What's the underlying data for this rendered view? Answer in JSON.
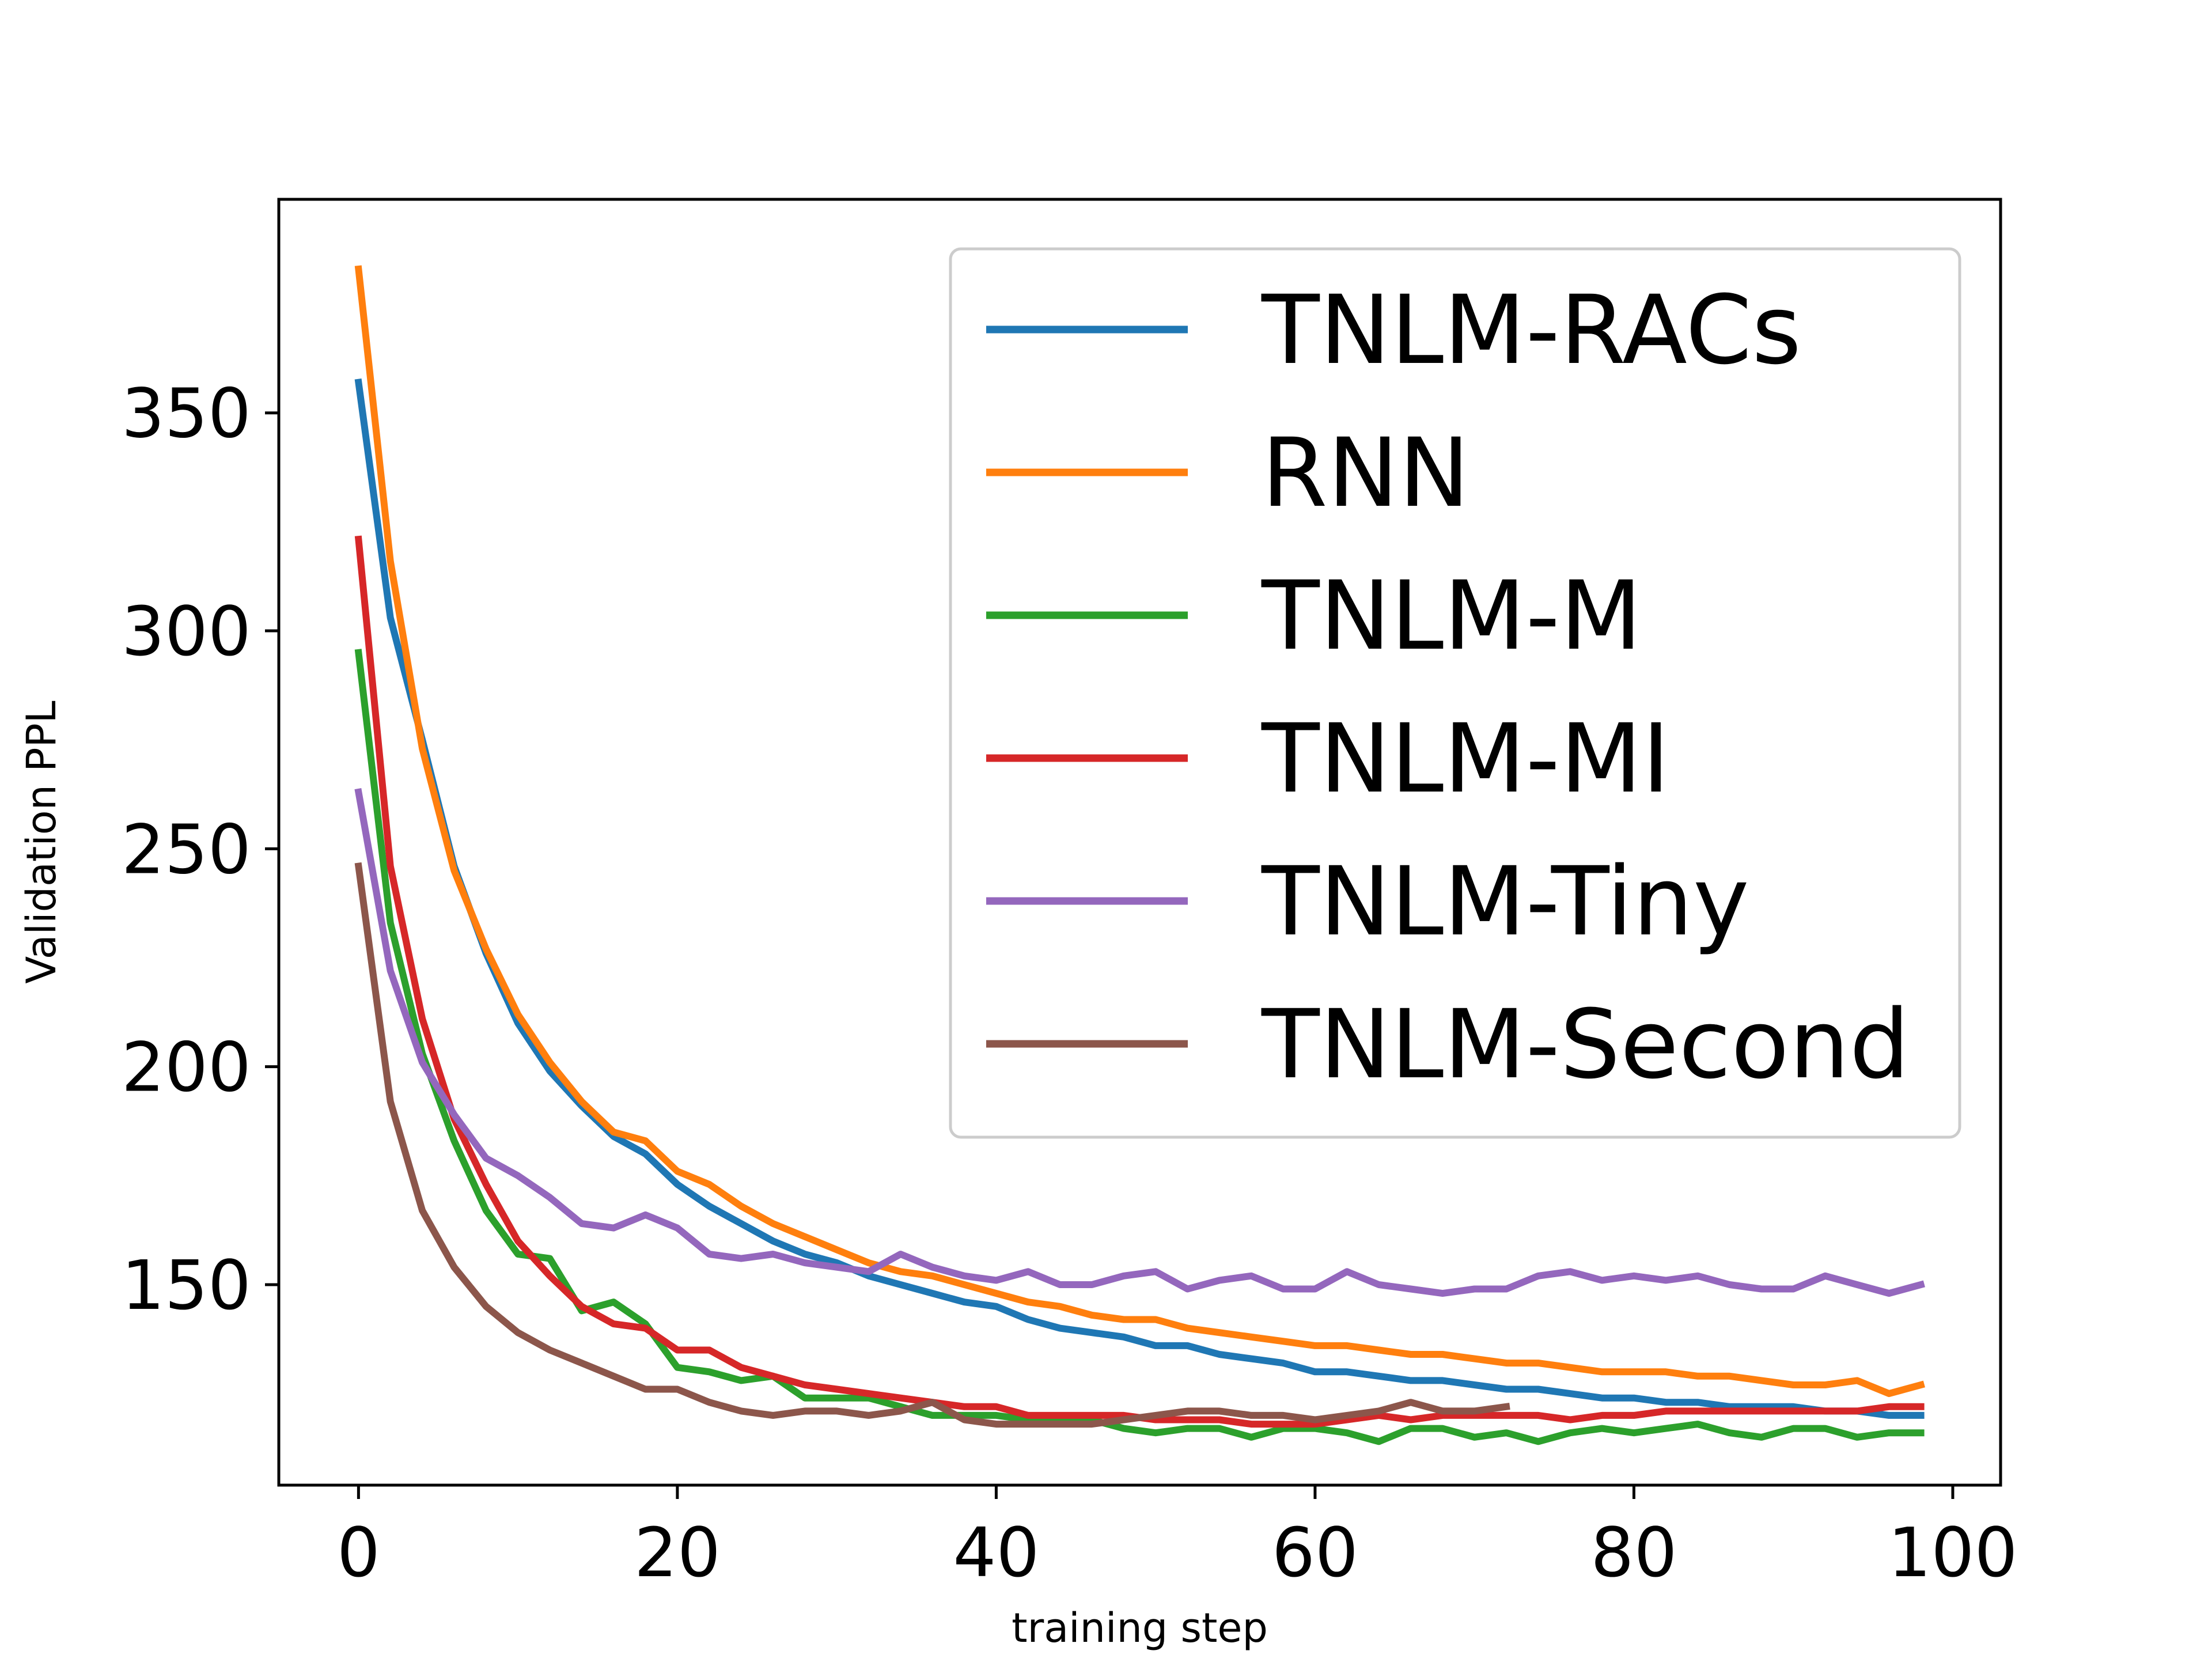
{
  "chart_data": {
    "type": "line",
    "title": "",
    "xlabel": "training step",
    "ylabel": "Validation PPL",
    "xlim": [
      -5,
      103
    ],
    "ylim": [
      104,
      399
    ],
    "xticks": [
      0,
      20,
      40,
      60,
      80,
      100
    ],
    "yticks": [
      150,
      200,
      250,
      300,
      350
    ],
    "grid": false,
    "legend_position": "upper-right",
    "series": [
      {
        "name": "TNLM-RACs",
        "color": "#1f77b4",
        "x": [
          0,
          2,
          4,
          6,
          8,
          10,
          12,
          14,
          16,
          18,
          20,
          22,
          24,
          26,
          28,
          30,
          32,
          34,
          36,
          38,
          40,
          42,
          44,
          46,
          48,
          50,
          52,
          54,
          56,
          58,
          60,
          62,
          64,
          66,
          68,
          70,
          72,
          74,
          76,
          78,
          80,
          82,
          84,
          86,
          88,
          90,
          92,
          94,
          96,
          98
        ],
        "y": [
          357,
          303,
          275,
          246,
          226,
          210,
          199,
          191,
          184,
          180,
          173,
          168,
          164,
          160,
          157,
          155,
          152,
          150,
          148,
          146,
          145,
          142,
          140,
          139,
          138,
          136,
          136,
          134,
          133,
          132,
          130,
          130,
          129,
          128,
          128,
          127,
          126,
          126,
          125,
          124,
          124,
          123,
          123,
          122,
          122,
          122,
          121,
          121,
          120,
          120
        ]
      },
      {
        "name": "RNN",
        "color": "#ff7f0e",
        "x": [
          0,
          2,
          4,
          6,
          8,
          10,
          12,
          14,
          16,
          18,
          20,
          22,
          24,
          26,
          28,
          30,
          32,
          34,
          36,
          38,
          40,
          42,
          44,
          46,
          48,
          50,
          52,
          54,
          56,
          58,
          60,
          62,
          64,
          66,
          68,
          70,
          72,
          74,
          76,
          78,
          80,
          82,
          84,
          86,
          88,
          90,
          92,
          94,
          96,
          98
        ],
        "y": [
          383,
          316,
          273,
          245,
          227,
          212,
          201,
          192,
          185,
          183,
          176,
          173,
          168,
          164,
          161,
          158,
          155,
          153,
          152,
          150,
          148,
          146,
          145,
          143,
          142,
          142,
          140,
          139,
          138,
          137,
          136,
          136,
          135,
          134,
          134,
          133,
          132,
          132,
          131,
          130,
          130,
          130,
          129,
          129,
          128,
          127,
          127,
          128,
          125,
          127
        ]
      },
      {
        "name": "TNLM-M",
        "color": "#2ca02c",
        "x": [
          0,
          2,
          4,
          6,
          8,
          10,
          12,
          14,
          16,
          18,
          20,
          22,
          24,
          26,
          28,
          30,
          32,
          34,
          36,
          38,
          40,
          42,
          44,
          46,
          48,
          50,
          52,
          54,
          56,
          58,
          60,
          62,
          64,
          66,
          68,
          70,
          72,
          74,
          76,
          78,
          80,
          82,
          84,
          86,
          88,
          90,
          92,
          94,
          96,
          98
        ],
        "y": [
          295,
          233,
          203,
          183,
          167,
          157,
          156,
          144,
          146,
          141,
          131,
          130,
          128,
          129,
          124,
          124,
          124,
          122,
          120,
          120,
          120,
          119,
          119,
          119,
          117,
          116,
          117,
          117,
          115,
          117,
          117,
          116,
          114,
          117,
          117,
          115,
          116,
          114,
          116,
          117,
          116,
          117,
          118,
          116,
          115,
          117,
          117,
          115,
          116,
          116
        ]
      },
      {
        "name": "TNLM-MI",
        "color": "#d62728",
        "x": [
          0,
          2,
          4,
          6,
          8,
          10,
          12,
          14,
          16,
          18,
          20,
          22,
          24,
          26,
          28,
          30,
          32,
          34,
          36,
          38,
          40,
          42,
          44,
          46,
          48,
          50,
          52,
          54,
          56,
          58,
          60,
          62,
          64,
          66,
          68,
          70,
          72,
          74,
          76,
          78,
          80,
          82,
          84,
          86,
          88,
          90,
          92,
          94,
          96,
          98
        ],
        "y": [
          321,
          246,
          211,
          188,
          173,
          160,
          152,
          145,
          141,
          140,
          135,
          135,
          131,
          129,
          127,
          126,
          125,
          124,
          123,
          122,
          122,
          120,
          120,
          120,
          120,
          119,
          119,
          119,
          118,
          118,
          118,
          119,
          120,
          119,
          120,
          120,
          120,
          120,
          119,
          120,
          120,
          121,
          121,
          121,
          121,
          121,
          121,
          121,
          122,
          122
        ]
      },
      {
        "name": "TNLM-Tiny",
        "color": "#9467bd",
        "x": [
          0,
          2,
          4,
          6,
          8,
          10,
          12,
          14,
          16,
          18,
          20,
          22,
          24,
          26,
          28,
          30,
          32,
          34,
          36,
          38,
          40,
          42,
          44,
          46,
          48,
          50,
          52,
          54,
          56,
          58,
          60,
          62,
          64,
          66,
          68,
          70,
          72,
          74,
          76,
          78,
          80,
          82,
          84,
          86,
          88,
          90,
          92,
          94,
          96,
          98
        ],
        "y": [
          263,
          222,
          201,
          189,
          179,
          175,
          170,
          164,
          163,
          166,
          163,
          157,
          156,
          157,
          155,
          154,
          153,
          157,
          154,
          152,
          151,
          153,
          150,
          150,
          152,
          153,
          149,
          151,
          152,
          149,
          149,
          153,
          150,
          149,
          148,
          149,
          149,
          152,
          153,
          151,
          152,
          151,
          152,
          150,
          149,
          149,
          152,
          150,
          148,
          150
        ]
      },
      {
        "name": "TNLM-Second",
        "color": "#8c564b",
        "x": [
          0,
          2,
          4,
          6,
          8,
          10,
          12,
          14,
          16,
          18,
          20,
          22,
          24,
          26,
          28,
          30,
          32,
          34,
          36,
          38,
          40,
          42,
          44,
          46,
          48,
          50,
          52,
          54,
          56,
          58,
          60,
          62,
          64,
          66,
          68,
          70,
          72
        ],
        "y": [
          246,
          192,
          167,
          154,
          145,
          139,
          135,
          132,
          129,
          126,
          126,
          123,
          121,
          120,
          121,
          121,
          120,
          121,
          123,
          119,
          118,
          118,
          118,
          118,
          119,
          120,
          121,
          121,
          120,
          120,
          119,
          120,
          121,
          123,
          121,
          121,
          122
        ]
      }
    ]
  }
}
